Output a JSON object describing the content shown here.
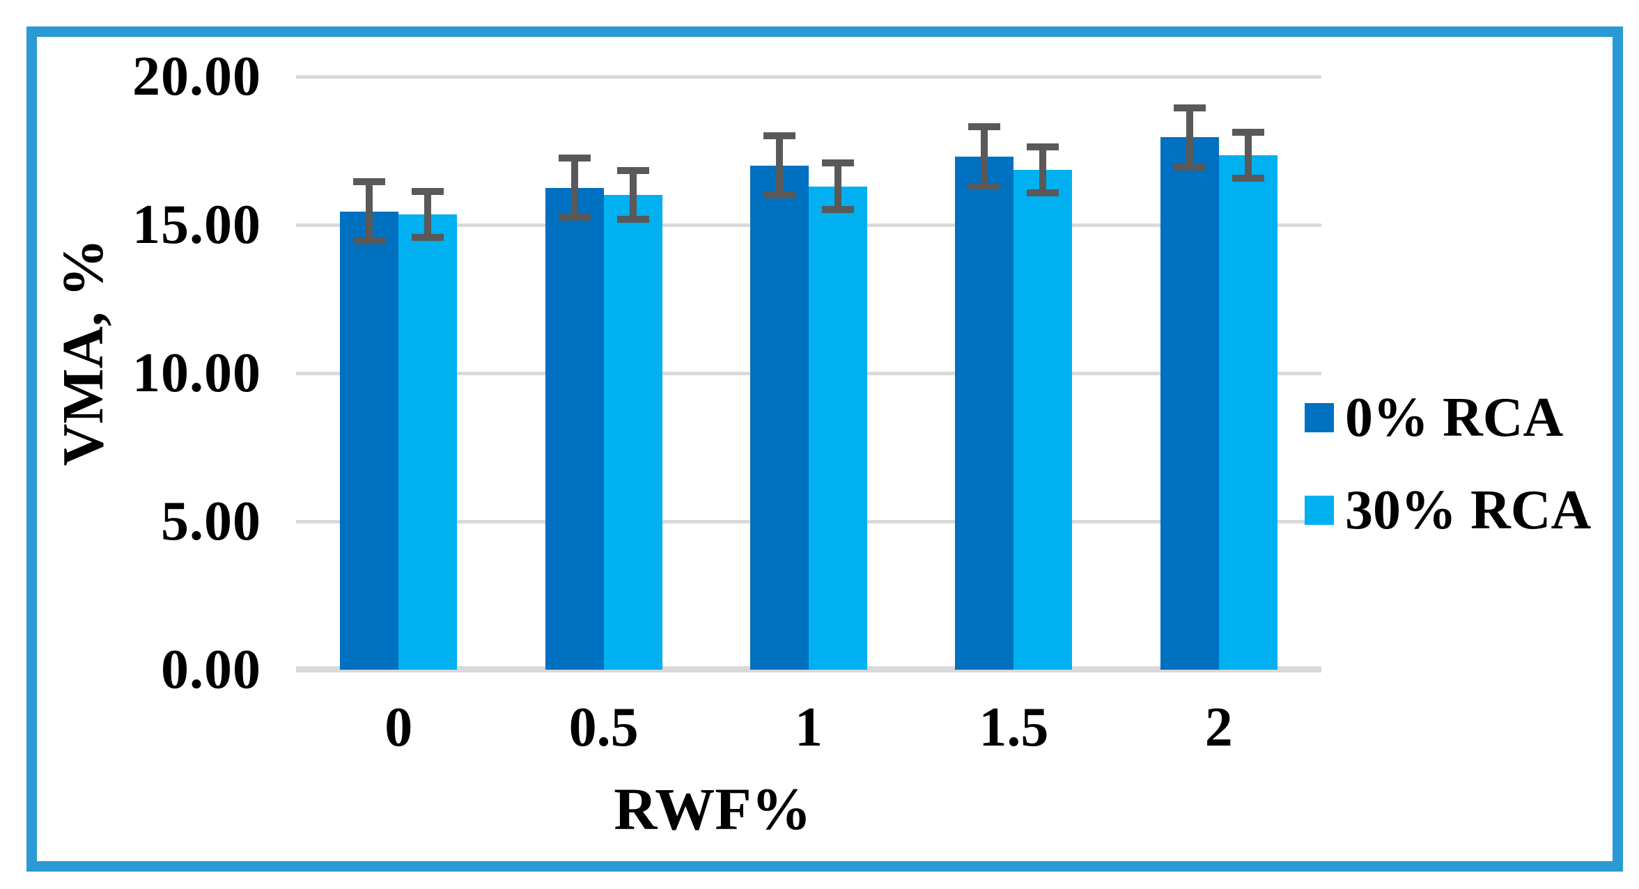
{
  "figure": {
    "border_color": "#2A9AD4",
    "background_color": "#FFFFFF"
  },
  "chart_data": {
    "type": "bar",
    "title": "",
    "xlabel": "RWF%",
    "ylabel": "VMA, %",
    "categories": [
      "0",
      "0.5",
      "1",
      "1.5",
      "2"
    ],
    "series": [
      {
        "name": "0% RCA",
        "color": "#0070C0",
        "values": [
          15.45,
          16.25,
          17.0,
          17.3,
          17.95
        ],
        "error_bars": [
          1.0,
          1.0,
          1.0,
          1.0,
          1.0
        ]
      },
      {
        "name": "30% RCA",
        "color": "#00B0F0",
        "values": [
          15.35,
          16.0,
          16.3,
          16.85,
          17.35
        ],
        "error_bars": [
          0.78,
          0.82,
          0.78,
          0.78,
          0.78
        ]
      }
    ],
    "ylim": [
      0,
      20
    ],
    "ytick_step": 5,
    "ytick_labels": [
      "0.00",
      "5.00",
      "10.00",
      "15.00",
      "20.00"
    ],
    "grid": true,
    "gridline_color": "#D9D9D9",
    "error_bar_color": "#595959",
    "legend_position": "right"
  }
}
